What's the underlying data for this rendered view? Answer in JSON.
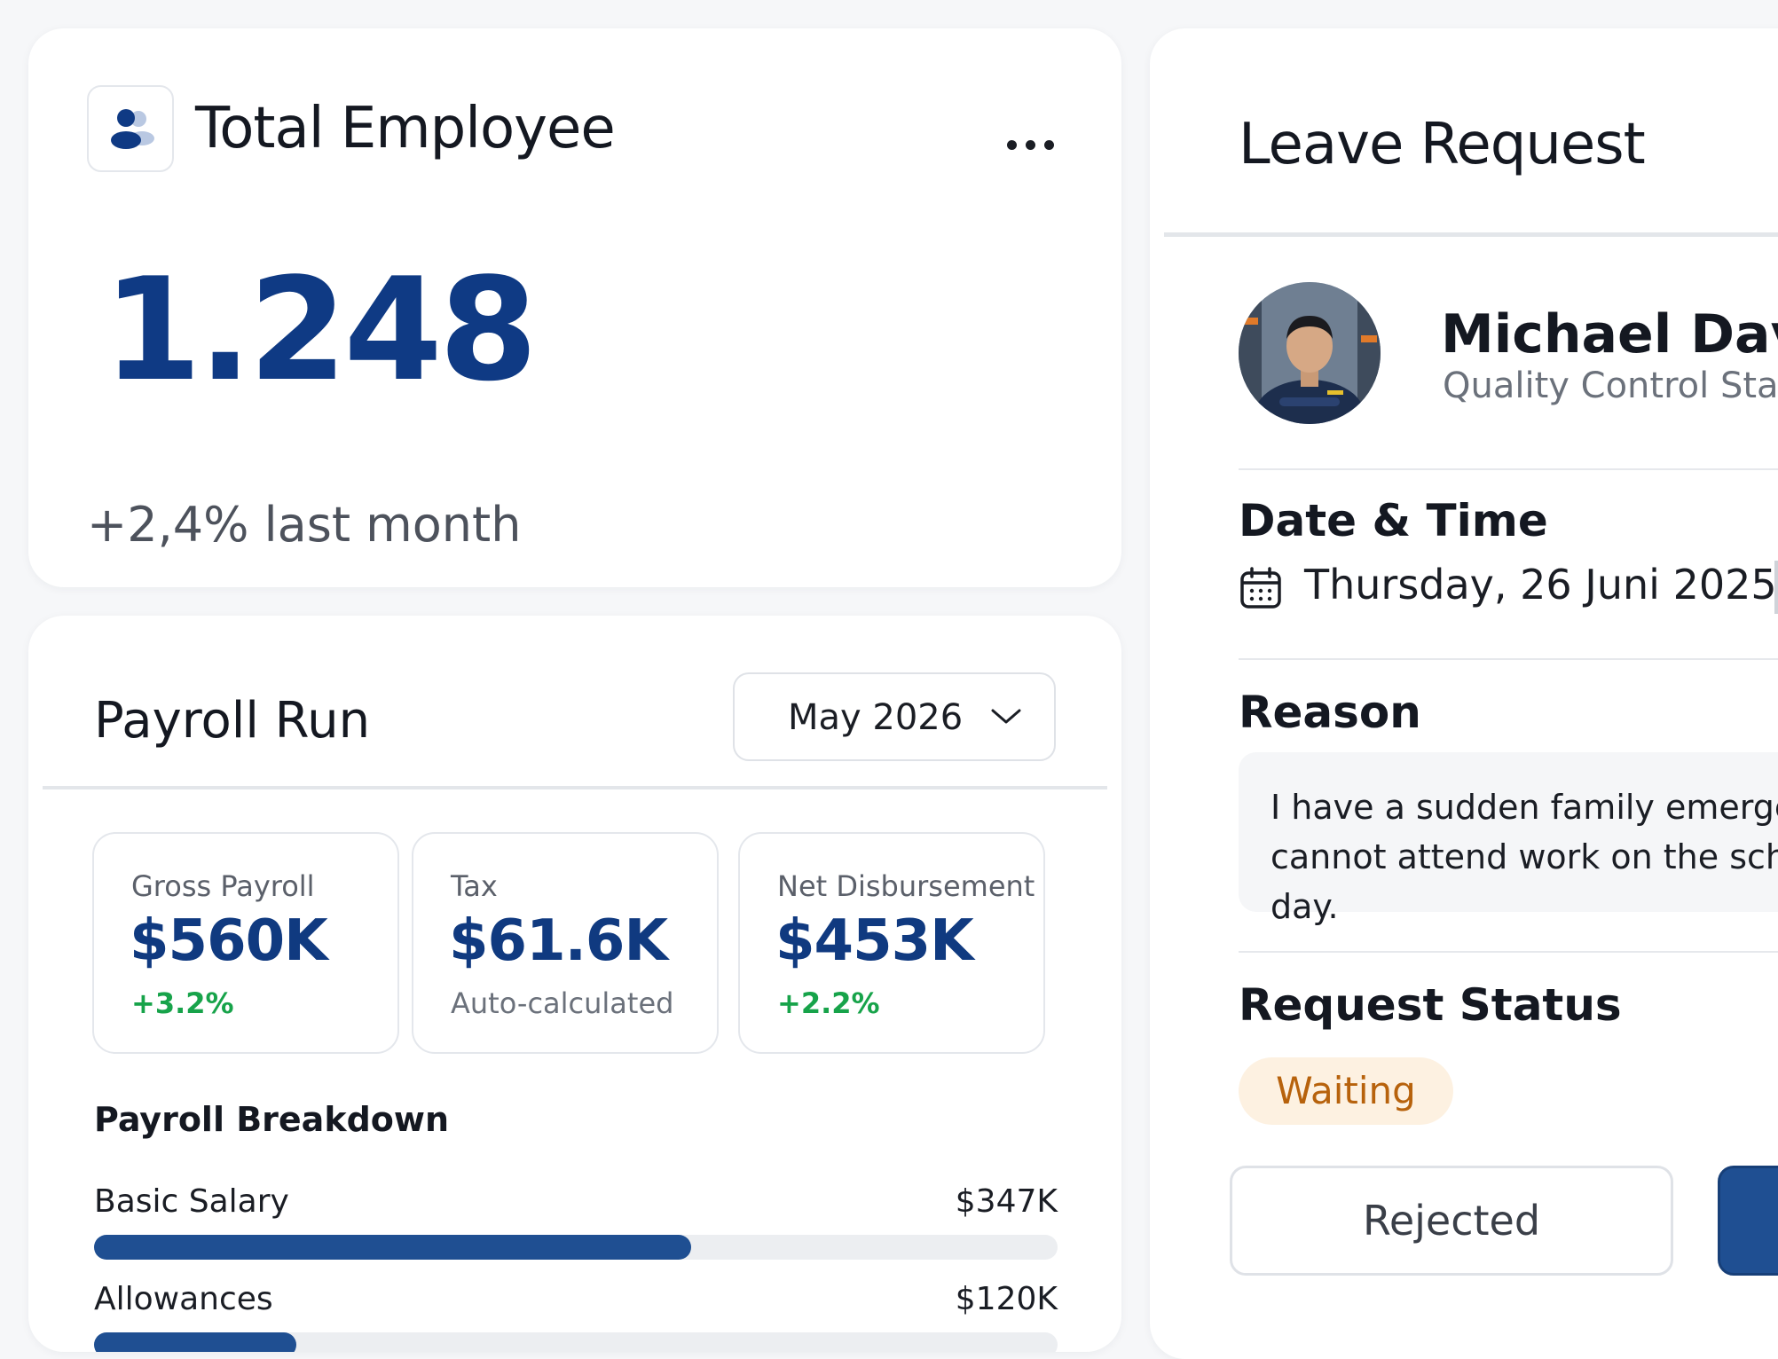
{
  "total_employee": {
    "title": "Total Employee",
    "icon": "users-icon",
    "count": "1.248",
    "change": "+2,4% last month"
  },
  "payroll": {
    "title": "Payroll Run",
    "month": "May 2026",
    "stats": [
      {
        "label": "Gross Payroll",
        "value": "$560K",
        "sub": "+3.2%"
      },
      {
        "label": "Tax",
        "value": "$61.6K",
        "sub": "Auto-calculated"
      },
      {
        "label": "Net Disbursement",
        "value": "$453K",
        "sub": "+2.2%"
      }
    ],
    "breakdown_title": "Payroll Breakdown",
    "breakdown": [
      {
        "name": "Basic Salary",
        "amount": "$347K",
        "fraction": 0.62
      },
      {
        "name": "Allowances",
        "amount": "$120K",
        "fraction": 0.21
      }
    ]
  },
  "leave_request": {
    "title": "Leave Request",
    "employee": {
      "name": "Michael David",
      "role": "Quality Control Staff"
    },
    "date_title": "Date & Time",
    "date_value": "Thursday, 26 Juni 2025",
    "reason_title": "Reason",
    "reason_text": "I have a sudden family emergency and cannot attend work on the scheduled day.",
    "status_title": "Request Status",
    "status": "Waiting",
    "reject_label": "Rejected"
  },
  "colors": {
    "primary": "#0f3a84",
    "accent_bar": "#1f4f92",
    "positive": "#17a34a",
    "waiting_bg": "#fdf1e1",
    "waiting_text": "#b7620c"
  }
}
